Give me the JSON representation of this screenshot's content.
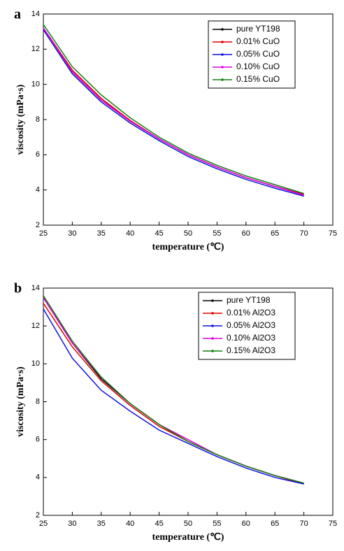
{
  "chart_data": [
    {
      "type": "line",
      "panel": "a",
      "xlabel": "temperature (℃)",
      "ylabel": "viscosity (mPa·s)",
      "x": [
        25,
        30,
        35,
        40,
        45,
        50,
        55,
        60,
        65,
        70
      ],
      "xlim": [
        25,
        75
      ],
      "xticks": [
        25,
        30,
        35,
        40,
        45,
        50,
        55,
        60,
        65,
        70,
        75
      ],
      "ylim": [
        2,
        14
      ],
      "yticks": [
        2,
        4,
        6,
        8,
        10,
        12,
        14
      ],
      "legend": "upper right",
      "series": [
        {
          "name": "pure YT198",
          "color": "#000000",
          "values": [
            13.2,
            10.8,
            9.2,
            7.9,
            6.9,
            6.0,
            5.3,
            4.7,
            4.2,
            3.75
          ]
        },
        {
          "name": "0.01% CuO",
          "color": "#e00000",
          "values": [
            13.2,
            10.8,
            9.2,
            7.95,
            6.9,
            6.0,
            5.3,
            4.7,
            4.2,
            3.75
          ]
        },
        {
          "name": "0.05% CuO",
          "color": "#1010e0",
          "values": [
            13.1,
            10.6,
            9.0,
            7.8,
            6.8,
            5.9,
            5.2,
            4.6,
            4.1,
            3.65
          ]
        },
        {
          "name": "0.10% CuO",
          "color": "#e000e0",
          "values": [
            13.2,
            10.7,
            9.1,
            7.9,
            6.9,
            6.0,
            5.3,
            4.7,
            4.2,
            3.7
          ]
        },
        {
          "name": "0.15% CuO",
          "color": "#108010",
          "values": [
            13.4,
            11.0,
            9.4,
            8.1,
            7.0,
            6.1,
            5.4,
            4.8,
            4.3,
            3.8
          ]
        }
      ]
    },
    {
      "type": "line",
      "panel": "b",
      "xlabel": "temperature (℃)",
      "ylabel": "viscosity (mPa·s)",
      "x": [
        25,
        30,
        35,
        40,
        45,
        50,
        55,
        60,
        65,
        70
      ],
      "xlim": [
        25,
        75
      ],
      "xticks": [
        25,
        30,
        35,
        40,
        45,
        50,
        55,
        60,
        65,
        70,
        75
      ],
      "ylim": [
        2,
        14
      ],
      "yticks": [
        2,
        4,
        6,
        8,
        10,
        12,
        14
      ],
      "legend": "upper right",
      "series": [
        {
          "name": "pure YT198",
          "color": "#000000",
          "values": [
            13.5,
            11.1,
            9.2,
            7.9,
            6.8,
            5.9,
            5.2,
            4.6,
            4.1,
            3.7
          ]
        },
        {
          "name": "0.01% Al2O3",
          "color": "#e00000",
          "values": [
            13.2,
            10.9,
            9.1,
            7.8,
            6.7,
            5.9,
            5.2,
            4.6,
            4.1,
            3.65
          ]
        },
        {
          "name": "0.05% Al2O3",
          "color": "#1010e0",
          "values": [
            12.9,
            10.3,
            8.6,
            7.5,
            6.5,
            5.8,
            5.1,
            4.5,
            4.0,
            3.65
          ]
        },
        {
          "name": "0.10% Al2O3",
          "color": "#e000e0",
          "values": [
            13.5,
            11.1,
            9.3,
            7.9,
            6.8,
            6.0,
            5.2,
            4.6,
            4.1,
            3.7
          ]
        },
        {
          "name": "0.15% Al2O3",
          "color": "#108010",
          "values": [
            13.6,
            11.2,
            9.3,
            7.9,
            6.8,
            5.9,
            5.2,
            4.6,
            4.1,
            3.7
          ]
        }
      ]
    }
  ]
}
